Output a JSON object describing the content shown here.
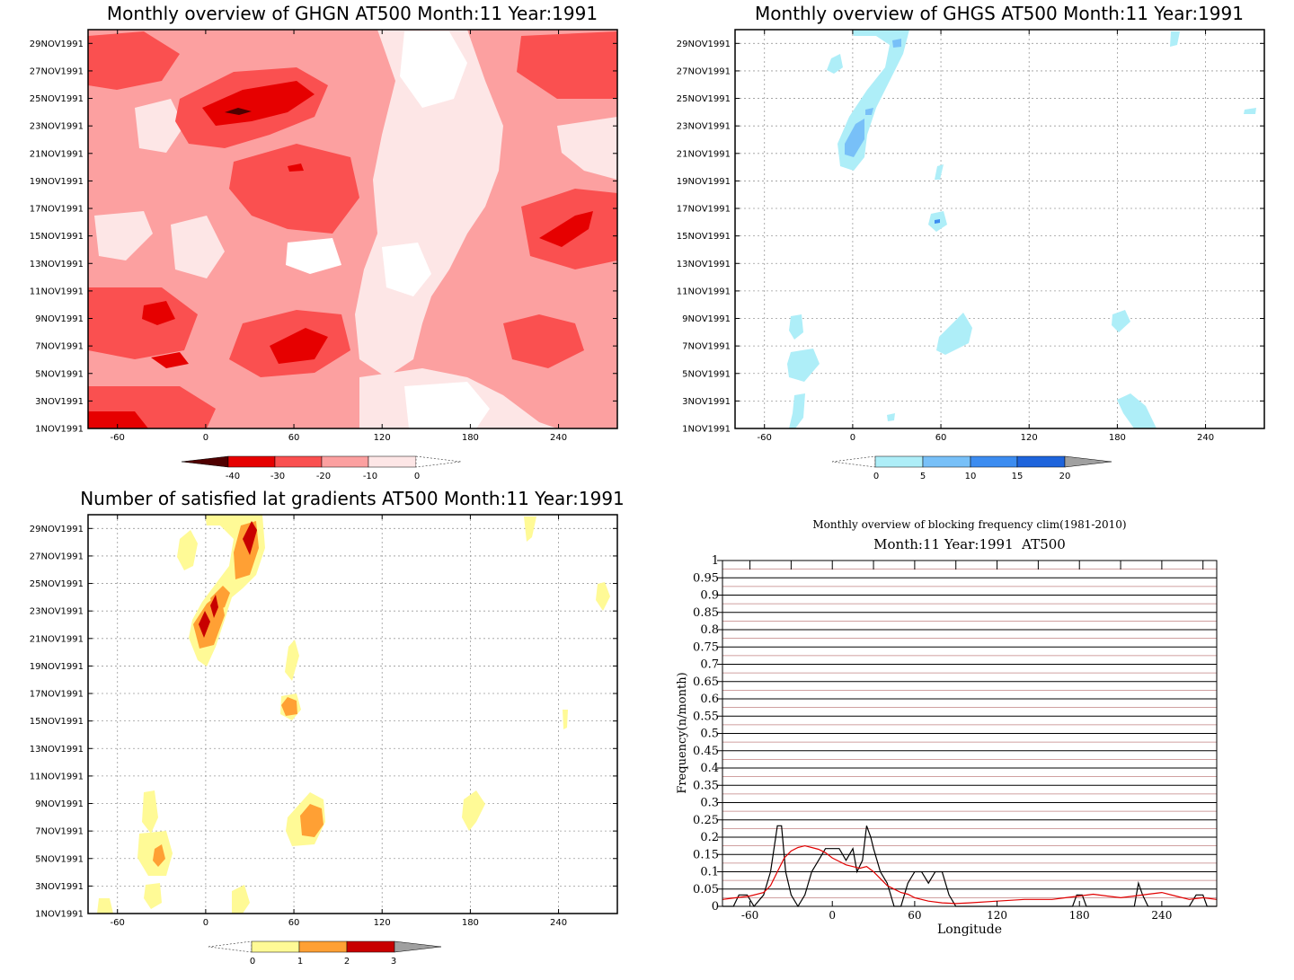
{
  "colors": {
    "ghgn": [
      "#500000",
      "#e60000",
      "#fa5050",
      "#fca0a0",
      "#fde6e6",
      "#ffffff"
    ],
    "ghgs": [
      "#ffffff",
      "#aeeef8",
      "#78c0f8",
      "#3c8cf0",
      "#1e64dc",
      "#a0a0a0"
    ],
    "count": [
      "#ffffff",
      "#fffa96",
      "#ffa034",
      "#c80000",
      "#a0a0a0"
    ],
    "black_line": "#000000",
    "red_line": "#e10000"
  },
  "chart_data": [
    {
      "id": "ghgn",
      "type": "heatmap",
      "title": "Monthly overview of GHGN AT500 Month:11 Year:1991",
      "x_ticks": [
        "-60",
        "0",
        "60",
        "120",
        "180",
        "240"
      ],
      "x_tick_values": [
        -60,
        0,
        60,
        120,
        180,
        240
      ],
      "xlim": [
        -80,
        280
      ],
      "y_ticks": [
        "1NOV1991",
        "3NOV1991",
        "5NOV1991",
        "7NOV1991",
        "9NOV1991",
        "11NOV1991",
        "13NOV1991",
        "15NOV1991",
        "17NOV1991",
        "19NOV1991",
        "21NOV1991",
        "23NOV1991",
        "25NOV1991",
        "27NOV1991",
        "29NOV1991"
      ],
      "y_tick_values": [
        1,
        3,
        5,
        7,
        9,
        11,
        13,
        15,
        17,
        19,
        21,
        23,
        25,
        27,
        29
      ],
      "ylim": [
        1,
        30
      ],
      "levels": [
        -40,
        -30,
        -20,
        -10,
        0
      ],
      "colorbar_labels": [
        "-40",
        "-30",
        "-20",
        "-10",
        "0"
      ]
    },
    {
      "id": "ghgs",
      "type": "heatmap",
      "title": "Monthly overview of GHGS AT500 Month:11 Year:1991",
      "x_ticks": [
        "-60",
        "0",
        "60",
        "120",
        "180",
        "240"
      ],
      "x_tick_values": [
        -60,
        0,
        60,
        120,
        180,
        240
      ],
      "xlim": [
        -80,
        280
      ],
      "y_ticks": [
        "1NOV1991",
        "3NOV1991",
        "5NOV1991",
        "7NOV1991",
        "9NOV1991",
        "11NOV1991",
        "13NOV1991",
        "15NOV1991",
        "17NOV1991",
        "19NOV1991",
        "21NOV1991",
        "23NOV1991",
        "25NOV1991",
        "27NOV1991",
        "29NOV1991"
      ],
      "y_tick_values": [
        1,
        3,
        5,
        7,
        9,
        11,
        13,
        15,
        17,
        19,
        21,
        23,
        25,
        27,
        29
      ],
      "ylim": [
        1,
        30
      ],
      "levels": [
        0,
        5,
        10,
        15,
        20
      ],
      "colorbar_labels": [
        "0",
        "5",
        "10",
        "15",
        "20"
      ],
      "grid": true
    },
    {
      "id": "count",
      "type": "heatmap",
      "title": "Number of satisfied lat gradients AT500 Month:11 Year:1991",
      "x_ticks": [
        "-60",
        "0",
        "60",
        "120",
        "180",
        "240"
      ],
      "x_tick_values": [
        -60,
        0,
        60,
        120,
        180,
        240
      ],
      "xlim": [
        -80,
        280
      ],
      "y_ticks": [
        "1NOV1991",
        "3NOV1991",
        "5NOV1991",
        "7NOV1991",
        "9NOV1991",
        "11NOV1991",
        "13NOV1991",
        "15NOV1991",
        "17NOV1991",
        "19NOV1991",
        "21NOV1991",
        "23NOV1991",
        "25NOV1991",
        "27NOV1991",
        "29NOV1991"
      ],
      "y_tick_values": [
        1,
        3,
        5,
        7,
        9,
        11,
        13,
        15,
        17,
        19,
        21,
        23,
        25,
        27,
        29
      ],
      "ylim": [
        1,
        30
      ],
      "levels": [
        0,
        1,
        2,
        3
      ],
      "colorbar_labels": [
        "0",
        "1",
        "2",
        "3"
      ],
      "grid": true
    },
    {
      "id": "freq",
      "type": "line",
      "title": "Monthly overview of blocking frequency clim(1981-2010)",
      "subtitle": "Month:11 Year:1991  AT500",
      "xlabel": "Longitude",
      "ylabel": "Frequency(n/month)",
      "xlim": [
        -80,
        280
      ],
      "ylim": [
        0,
        1
      ],
      "x_ticks": [
        "-60",
        "0",
        "60",
        "120",
        "180",
        "240"
      ],
      "x_tick_values": [
        -60,
        0,
        60,
        120,
        180,
        240
      ],
      "y_ticks": [
        "0",
        "0.05",
        "0.1",
        "0.15",
        "0.2",
        "0.25",
        "0.3",
        "0.35",
        "0.4",
        "0.45",
        "0.5",
        "0.55",
        "0.6",
        "0.65",
        "0.7",
        "0.75",
        "0.8",
        "0.85",
        "0.9",
        "0.95",
        "1"
      ],
      "y_tick_values": [
        0,
        0.05,
        0.1,
        0.15,
        0.2,
        0.25,
        0.3,
        0.35,
        0.4,
        0.45,
        0.5,
        0.55,
        0.6,
        0.65,
        0.7,
        0.75,
        0.8,
        0.85,
        0.9,
        0.95,
        1
      ],
      "series": [
        {
          "color": "black",
          "x": [
            -80,
            -72,
            -68,
            -62,
            -57,
            -50,
            -45,
            -40,
            -37,
            -34,
            -30,
            -25,
            -20,
            -15,
            -10,
            -5,
            0,
            5,
            10,
            15,
            18,
            22,
            25,
            28,
            30,
            35,
            40,
            45,
            50,
            55,
            60,
            65,
            70,
            75,
            80,
            85,
            90,
            100,
            120,
            150,
            175,
            178,
            182,
            185,
            190,
            200,
            220,
            223,
            226,
            230,
            240,
            250,
            260,
            265,
            270,
            273,
            280
          ],
          "y": [
            0,
            0,
            0.033,
            0.033,
            0,
            0.033,
            0.1,
            0.233,
            0.233,
            0.1,
            0.033,
            0,
            0.033,
            0.1,
            0.133,
            0.167,
            0.167,
            0.167,
            0.133,
            0.167,
            0.1,
            0.133,
            0.233,
            0.2,
            0.167,
            0.1,
            0.067,
            0,
            0,
            0.067,
            0.1,
            0.1,
            0.067,
            0.1,
            0.1,
            0.033,
            0,
            0,
            0,
            0,
            0,
            0.033,
            0.033,
            0,
            0,
            0,
            0,
            0.067,
            0.033,
            0,
            0,
            0,
            0,
            0.033,
            0.033,
            0,
            0
          ]
        },
        {
          "color": "red",
          "x": [
            -80,
            -70,
            -60,
            -50,
            -45,
            -40,
            -35,
            -30,
            -25,
            -20,
            -15,
            -10,
            -5,
            0,
            5,
            10,
            15,
            20,
            25,
            30,
            35,
            40,
            45,
            50,
            55,
            60,
            70,
            80,
            90,
            100,
            120,
            140,
            160,
            170,
            180,
            190,
            200,
            210,
            220,
            230,
            240,
            250,
            260,
            270,
            280
          ],
          "y": [
            0.02,
            0.025,
            0.03,
            0.04,
            0.06,
            0.1,
            0.14,
            0.16,
            0.17,
            0.175,
            0.17,
            0.165,
            0.155,
            0.14,
            0.13,
            0.12,
            0.115,
            0.11,
            0.115,
            0.1,
            0.08,
            0.06,
            0.05,
            0.04,
            0.035,
            0.025,
            0.015,
            0.01,
            0.008,
            0.01,
            0.015,
            0.02,
            0.02,
            0.025,
            0.03,
            0.035,
            0.03,
            0.025,
            0.03,
            0.035,
            0.04,
            0.03,
            0.02,
            0.025,
            0.02
          ]
        }
      ]
    }
  ]
}
